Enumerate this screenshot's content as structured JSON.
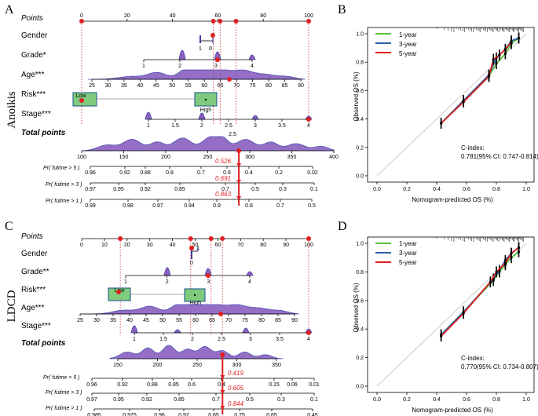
{
  "panel_labels": {
    "a": "A",
    "b": "B",
    "c": "C",
    "d": "D"
  },
  "side_labels": {
    "top": "Anoikis",
    "bottom": "LDCD"
  },
  "colors": {
    "density": "#8a5fc0",
    "density_edge": "#3b3fa8",
    "red": "#e02020",
    "green": "#55c13a",
    "blue": "#2b5ca8",
    "box": "#7ecb7e",
    "box_edge": "#1c4d8f",
    "ref": "#cccccc"
  },
  "chart_data": [
    {
      "type": "nomogram",
      "model": "Anoikis",
      "rows": {
        "points": {
          "label": "Points",
          "ticks": [
            "0",
            "20",
            "40",
            "60",
            "80",
            "100"
          ],
          "selected": [
            0,
            58,
            61,
            68,
            100
          ]
        },
        "gender": {
          "label": "Gender",
          "ticks": [
            "1",
            "0"
          ]
        },
        "grade": {
          "label": "Grade*",
          "ticks": [
            "1",
            "2",
            "3",
            "4"
          ]
        },
        "age": {
          "label": "Age***",
          "ticks": [
            "25",
            "30",
            "35",
            "40",
            "45",
            "50",
            "55",
            "60",
            "65",
            "70",
            "75",
            "80",
            "85",
            "90"
          ]
        },
        "risk": {
          "label": "Risk***",
          "box_low": "Low",
          "box_high": "High"
        },
        "stage": {
          "label": "Stage***",
          "ticks": [
            "1",
            "1.5",
            "2",
            "2.5",
            "3",
            "3.5",
            "4"
          ]
        },
        "total": {
          "label": "Total points",
          "ticks": [
            "100",
            "150",
            "200",
            "250",
            "300",
            "350",
            "400"
          ],
          "selected": 287
        }
      },
      "prob_rows": [
        {
          "label": "Pr( futime > 5 )",
          "ticks": [
            "0.96",
            "0.92",
            "0.88",
            "0.8",
            "0.7",
            "0.6",
            "0.4",
            "0.2",
            "0.02"
          ],
          "value": "0.526"
        },
        {
          "label": "Pr( futime > 3 )",
          "ticks": [
            "0.97",
            "0.95",
            "0.92",
            "0.85",
            "0.7",
            "0.5",
            "0.3",
            "0.1"
          ],
          "value": "0.691"
        },
        {
          "label": "Pr( futime > 1 )",
          "ticks": [
            "0.99",
            "0.98",
            "0.97",
            "0.94",
            "0.9",
            "0.8",
            "0.7",
            "0.5"
          ],
          "value": "0.863"
        }
      ]
    },
    {
      "type": "nomogram",
      "model": "LDCD",
      "rows": {
        "points": {
          "label": "Points",
          "ticks": [
            "0",
            "10",
            "20",
            "30",
            "40",
            "50",
            "60",
            "70",
            "80",
            "90",
            "100"
          ],
          "selected": [
            17,
            48,
            57,
            62,
            100
          ]
        },
        "gender": {
          "label": "Gender",
          "ticks": [
            "1",
            "0"
          ]
        },
        "grade": {
          "label": "Grade**",
          "ticks": [
            "1",
            "2",
            "3",
            "4"
          ]
        },
        "risk": {
          "label": "Risk***",
          "box_low": "Low",
          "box_high": "High"
        },
        "age": {
          "label": "Age***",
          "ticks": [
            "25",
            "30",
            "35",
            "40",
            "45",
            "50",
            "55",
            "60",
            "65",
            "70",
            "75",
            "80",
            "85",
            "90"
          ]
        },
        "stage": {
          "label": "Stage***",
          "ticks": [
            "1",
            "1.5",
            "2",
            "2.5",
            "3",
            "3.5",
            "4"
          ]
        },
        "total": {
          "label": "Total points",
          "ticks": [
            "150",
            "200",
            "250",
            "300",
            "350"
          ],
          "selected": 282
        }
      },
      "prob_rows": [
        {
          "label": "Pr( futime > 5 )",
          "ticks": [
            "0.96",
            "0.92",
            "0.88",
            "0.85",
            "0.6",
            "0.4",
            "0.15",
            "0.06",
            "0.01"
          ],
          "value": "0.419"
        },
        {
          "label": "Pr( futime > 3 )",
          "ticks": [
            "0.97",
            "0.95",
            "0.92",
            "0.85",
            "0.7",
            "0.5",
            "0.3",
            "0.1"
          ],
          "value": "0.605"
        },
        {
          "label": "Pr( futime > 1 )",
          "ticks": [
            "0.985",
            "0.975",
            "0.96",
            "0.92",
            "0.85",
            "0.75",
            "0.65",
            "0.45"
          ],
          "value": "0.844"
        }
      ]
    },
    {
      "type": "line",
      "model": "Anoikis",
      "xlabel": "Nomogram-predicted OS (%)",
      "ylabel": "Observed OS (%)",
      "xlim": [
        0,
        1
      ],
      "ylim": [
        0,
        1
      ],
      "xticks": [
        "0.0",
        "0.2",
        "0.4",
        "0.6",
        "0.8",
        "1.0"
      ],
      "yticks": [
        "0.0",
        "0.2",
        "0.4",
        "0.6",
        "0.8",
        "1.0"
      ],
      "cindex": "C-index:",
      "cindex_value": "0.781(95% CI: 0.747-0.814)",
      "series": [
        {
          "name": "1-year",
          "x": [
            0.43,
            0.58,
            0.75,
            0.8,
            0.86,
            0.9,
            0.95
          ],
          "y": [
            0.37,
            0.53,
            0.7,
            0.79,
            0.86,
            0.93,
            0.97
          ]
        },
        {
          "name": "3-year",
          "x": [
            0.43,
            0.58,
            0.75,
            0.8,
            0.86,
            0.9,
            0.95
          ],
          "y": [
            0.37,
            0.53,
            0.71,
            0.83,
            0.89,
            0.95,
            0.97
          ]
        },
        {
          "name": "5-year",
          "x": [
            0.43,
            0.58,
            0.75,
            0.78,
            0.82,
            0.86,
            0.9
          ],
          "y": [
            0.37,
            0.52,
            0.7,
            0.82,
            0.85,
            0.89,
            0.94
          ]
        }
      ]
    },
    {
      "type": "line",
      "model": "LDCD",
      "xlabel": "Nomogram-predicted OS (%)",
      "ylabel": "Observed OS (%)",
      "xlim": [
        0,
        1
      ],
      "ylim": [
        0,
        1
      ],
      "xticks": [
        "0.0",
        "0.2",
        "0.4",
        "0.6",
        "0.8",
        "1.0"
      ],
      "yticks": [
        "0.0",
        "0.2",
        "0.4",
        "0.6",
        "0.8",
        "1.0"
      ],
      "cindex": "C-index:",
      "cindex_value": "0.770(95% CI: 0.734-0.807)",
      "series": [
        {
          "name": "1-year",
          "x": [
            0.43,
            0.58,
            0.78,
            0.82,
            0.86,
            0.9,
            0.95
          ],
          "y": [
            0.36,
            0.52,
            0.74,
            0.8,
            0.85,
            0.9,
            0.94
          ]
        },
        {
          "name": "3-year",
          "x": [
            0.43,
            0.58,
            0.78,
            0.82,
            0.86,
            0.9,
            0.95
          ],
          "y": [
            0.36,
            0.52,
            0.75,
            0.81,
            0.88,
            0.93,
            0.97
          ]
        },
        {
          "name": "5-year",
          "x": [
            0.43,
            0.58,
            0.76,
            0.8,
            0.86,
            0.9,
            0.95
          ],
          "y": [
            0.35,
            0.51,
            0.73,
            0.8,
            0.86,
            0.93,
            0.97
          ]
        }
      ]
    }
  ]
}
